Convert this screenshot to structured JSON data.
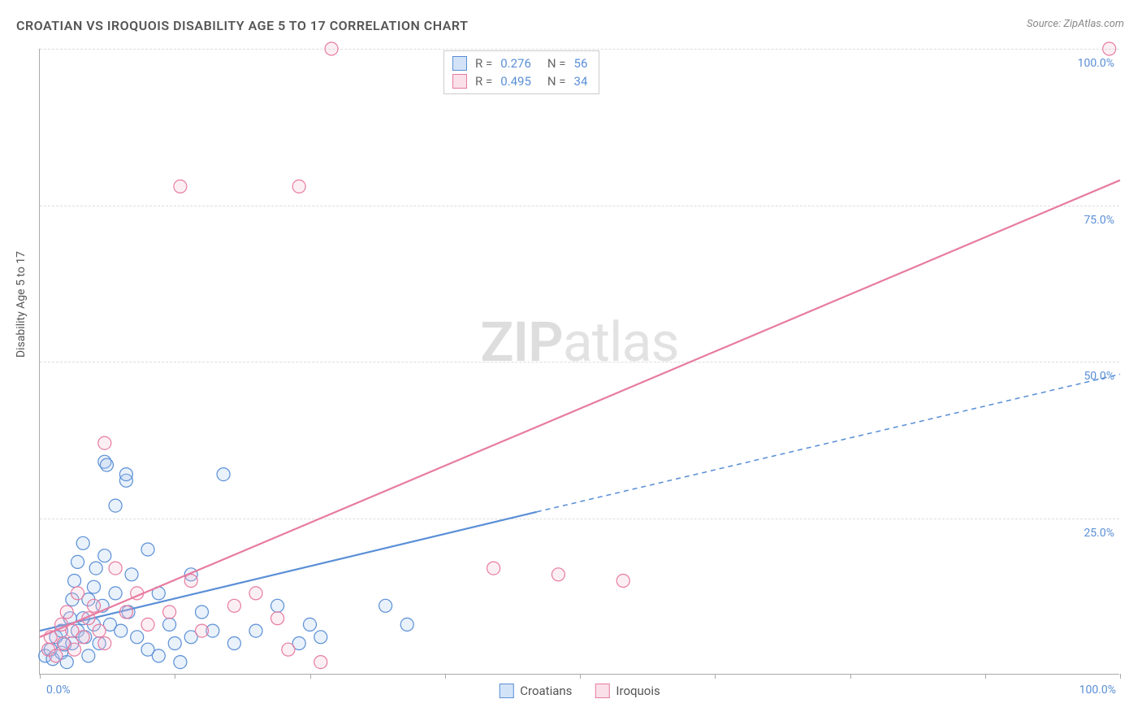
{
  "title": "CROATIAN VS IROQUOIS DISABILITY AGE 5 TO 17 CORRELATION CHART",
  "source": "Source: ZipAtlas.com",
  "ylabel": "Disability Age 5 to 17",
  "watermark_a": "ZIP",
  "watermark_b": "atlas",
  "chart": {
    "type": "scatter",
    "xlim": [
      0,
      100
    ],
    "ylim": [
      0,
      100
    ],
    "ytick_step": 25,
    "ytick_labels": [
      "25.0%",
      "50.0%",
      "75.0%",
      "100.0%"
    ],
    "xtick_positions": [
      0,
      12.5,
      25,
      37.5,
      50,
      62.5,
      75,
      87.5,
      100
    ],
    "x_end_labels": [
      "0.0%",
      "100.0%"
    ],
    "background_color": "#ffffff",
    "grid_color": "#dddddd",
    "axis_color": "#aaaaaa",
    "tick_label_color": "#5a8fd6",
    "marker_radius": 8,
    "marker_stroke_width": 1.2,
    "marker_fill_opacity": 0.25,
    "series": [
      {
        "name": "Croatians",
        "color_stroke": "#5a8fd6",
        "color_fill": "#a8c8ef",
        "points": [
          [
            0.5,
            3
          ],
          [
            1,
            4
          ],
          [
            1.2,
            2.5
          ],
          [
            1.5,
            6
          ],
          [
            2,
            3.5
          ],
          [
            2,
            7
          ],
          [
            2.3,
            4.8
          ],
          [
            2.5,
            2
          ],
          [
            2.8,
            9
          ],
          [
            3,
            5
          ],
          [
            3,
            12
          ],
          [
            3.2,
            15
          ],
          [
            3.5,
            7
          ],
          [
            3.5,
            18
          ],
          [
            4,
            9
          ],
          [
            4,
            21
          ],
          [
            4.2,
            6
          ],
          [
            4.5,
            12
          ],
          [
            4.5,
            3
          ],
          [
            5,
            8
          ],
          [
            5,
            14
          ],
          [
            5.2,
            17
          ],
          [
            5.5,
            5
          ],
          [
            5.8,
            11
          ],
          [
            6,
            19
          ],
          [
            6,
            34
          ],
          [
            6.2,
            33.5
          ],
          [
            6.5,
            8
          ],
          [
            7,
            27
          ],
          [
            7,
            13
          ],
          [
            7.5,
            7
          ],
          [
            8,
            31
          ],
          [
            8,
            32
          ],
          [
            8.2,
            10
          ],
          [
            8.5,
            16
          ],
          [
            9,
            6
          ],
          [
            10,
            4
          ],
          [
            10,
            20
          ],
          [
            11,
            13
          ],
          [
            11,
            3
          ],
          [
            12,
            8
          ],
          [
            12.5,
            5
          ],
          [
            13,
            2
          ],
          [
            14,
            16
          ],
          [
            14,
            6
          ],
          [
            15,
            10
          ],
          [
            16,
            7
          ],
          [
            17,
            32
          ],
          [
            18,
            5
          ],
          [
            20,
            7
          ],
          [
            22,
            11
          ],
          [
            24,
            5
          ],
          [
            25,
            8
          ],
          [
            26,
            6
          ],
          [
            32,
            11
          ],
          [
            34,
            8
          ]
        ],
        "trend": {
          "x1": 0,
          "y1": 7,
          "x2": 46,
          "y2": 26,
          "x2_ext": 100,
          "y2_ext": 48,
          "dash_after": 46,
          "line_width": 2.2
        }
      },
      {
        "name": "Iroquois",
        "color_stroke": "#e77ba0",
        "color_fill": "#f5c1d2",
        "points": [
          [
            0.8,
            4
          ],
          [
            1,
            6
          ],
          [
            1.5,
            3
          ],
          [
            2,
            8
          ],
          [
            2.2,
            5
          ],
          [
            2.5,
            10
          ],
          [
            3,
            7
          ],
          [
            3.2,
            4
          ],
          [
            3.5,
            13
          ],
          [
            4,
            6
          ],
          [
            4.5,
            9
          ],
          [
            5,
            11
          ],
          [
            5.5,
            7
          ],
          [
            6,
            5
          ],
          [
            6,
            37
          ],
          [
            7,
            17
          ],
          [
            8,
            10
          ],
          [
            9,
            13
          ],
          [
            10,
            8
          ],
          [
            12,
            10
          ],
          [
            13,
            78
          ],
          [
            14,
            15
          ],
          [
            15,
            7
          ],
          [
            18,
            11
          ],
          [
            20,
            13
          ],
          [
            22,
            9
          ],
          [
            23,
            4
          ],
          [
            24,
            78
          ],
          [
            26,
            2
          ],
          [
            27,
            100
          ],
          [
            42,
            17
          ],
          [
            48,
            16
          ],
          [
            54,
            15
          ],
          [
            99,
            100
          ]
        ],
        "trend": {
          "x1": 0,
          "y1": 6,
          "x2": 100,
          "y2": 79,
          "line_width": 2.2
        }
      }
    ],
    "stats": [
      {
        "swatch_stroke": "#5a8fd6",
        "swatch_fill": "#a8c8ef",
        "r_label": "R",
        "r": "0.276",
        "n_label": "N",
        "n": "56"
      },
      {
        "swatch_stroke": "#e77ba0",
        "swatch_fill": "#f5c1d2",
        "r_label": "R",
        "r": "0.495",
        "n_label": "N",
        "n": "34"
      }
    ],
    "legend_bottom": [
      {
        "swatch_stroke": "#5a8fd6",
        "swatch_fill": "#a8c8ef",
        "label": "Croatians"
      },
      {
        "swatch_stroke": "#e77ba0",
        "swatch_fill": "#f5c1d2",
        "label": "Iroquois"
      }
    ]
  }
}
